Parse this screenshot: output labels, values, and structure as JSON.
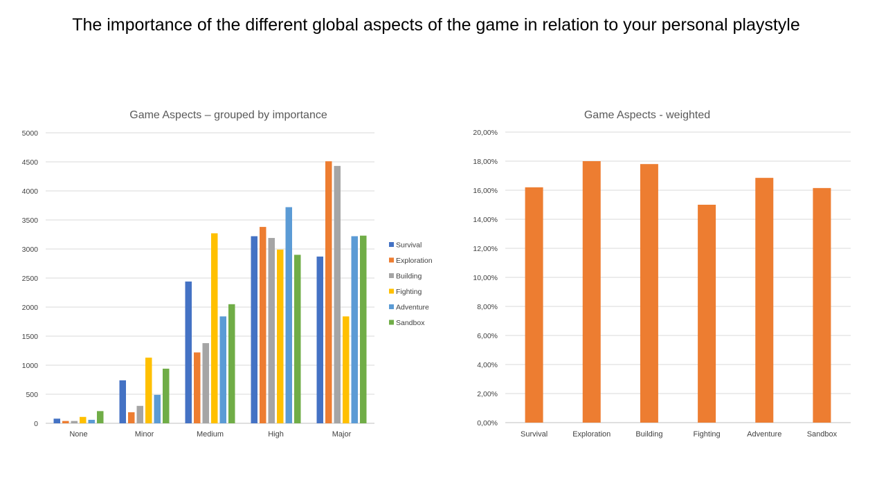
{
  "slide": {
    "title": "The importance of the different global aspects of the game in relation to your personal playstyle"
  },
  "chart_data": [
    {
      "type": "bar",
      "title": "Game Aspects – grouped by importance",
      "categories": [
        "None",
        "Minor",
        "Medium",
        "High",
        "Major"
      ],
      "ylim": [
        0,
        5000
      ],
      "yticks": [
        0,
        500,
        1000,
        1500,
        2000,
        2500,
        3000,
        3500,
        4000,
        4500,
        5000
      ],
      "grid": true,
      "legend": "right",
      "series": [
        {
          "name": "Survival",
          "color": "#4472C4",
          "values": [
            80,
            740,
            2440,
            3220,
            2870
          ]
        },
        {
          "name": "Exploration",
          "color": "#ED7D31",
          "values": [
            40,
            190,
            1220,
            3380,
            4510
          ]
        },
        {
          "name": "Building",
          "color": "#A5A5A5",
          "values": [
            40,
            300,
            1380,
            3190,
            4430
          ]
        },
        {
          "name": "Fighting",
          "color": "#FFC000",
          "values": [
            110,
            1130,
            3270,
            2990,
            1840
          ]
        },
        {
          "name": "Adventure",
          "color": "#5B9BD5",
          "values": [
            60,
            490,
            1840,
            3720,
            3220
          ]
        },
        {
          "name": "Sandbox",
          "color": "#70AD47",
          "values": [
            210,
            940,
            2050,
            2900,
            3230
          ]
        }
      ]
    },
    {
      "type": "bar",
      "title": "Game Aspects - weighted",
      "categories": [
        "Survival",
        "Exploration",
        "Building",
        "Fighting",
        "Adventure",
        "Sandbox"
      ],
      "values": [
        16.2,
        18.0,
        17.8,
        15.0,
        16.85,
        16.15
      ],
      "ylim": [
        0,
        20
      ],
      "yticks": [
        0,
        2,
        4,
        6,
        8,
        10,
        12,
        14,
        16,
        18,
        20
      ],
      "ytick_labels": [
        "0,00%",
        "2,00%",
        "4,00%",
        "6,00%",
        "8,00%",
        "10,00%",
        "12,00%",
        "14,00%",
        "16,00%",
        "18,00%",
        "20,00%"
      ],
      "grid": true,
      "color": "#ED7D31"
    }
  ]
}
